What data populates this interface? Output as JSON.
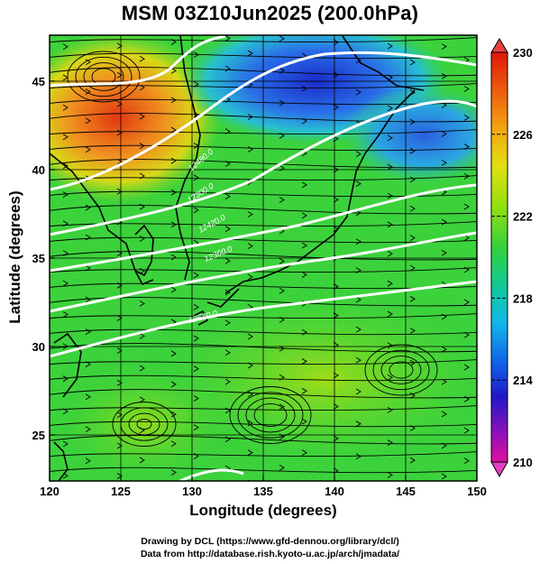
{
  "title": "MSM 03Z10Jun2025 (200.0hPa)",
  "xlabel": "Longitude (degrees)",
  "ylabel": "Latitude  (degrees)",
  "credits": {
    "line1": "Drawing by DCL (https://www.gfd-dennou.org/library/dcl/)",
    "line2": "Data from http://database.rish.kyoto-u.ac.jp/arch/jmadata/"
  },
  "chart_data": {
    "type": "map",
    "x_range": [
      120,
      150
    ],
    "y_range": [
      22.4,
      47.6
    ],
    "x_ticks": [
      "120",
      "125",
      "130",
      "135",
      "140",
      "145",
      "150"
    ],
    "y_ticks": [
      "25",
      "30",
      "35",
      "40",
      "45"
    ],
    "colorbar": {
      "min": 210,
      "max": 230,
      "labels": [
        "230",
        "226",
        "222",
        "218",
        "214",
        "210"
      ],
      "colors": [
        "#d80070",
        "#4010c0",
        "#1040e0",
        "#10c8d8",
        "#20c860",
        "#50dc20",
        "#a8e010",
        "#e0e010",
        "#f0a010",
        "#e83010"
      ]
    },
    "contour_labels": [
      "12480.0",
      "12300.0",
      "12420.0",
      "12360.0",
      "12540.0"
    ],
    "field_colors": {
      "background": "#3cd23c",
      "warm_core": "#e8501a",
      "cold_core": "#1a3cdc",
      "contour_line": "#ffffff",
      "streamline": "#000000"
    }
  }
}
